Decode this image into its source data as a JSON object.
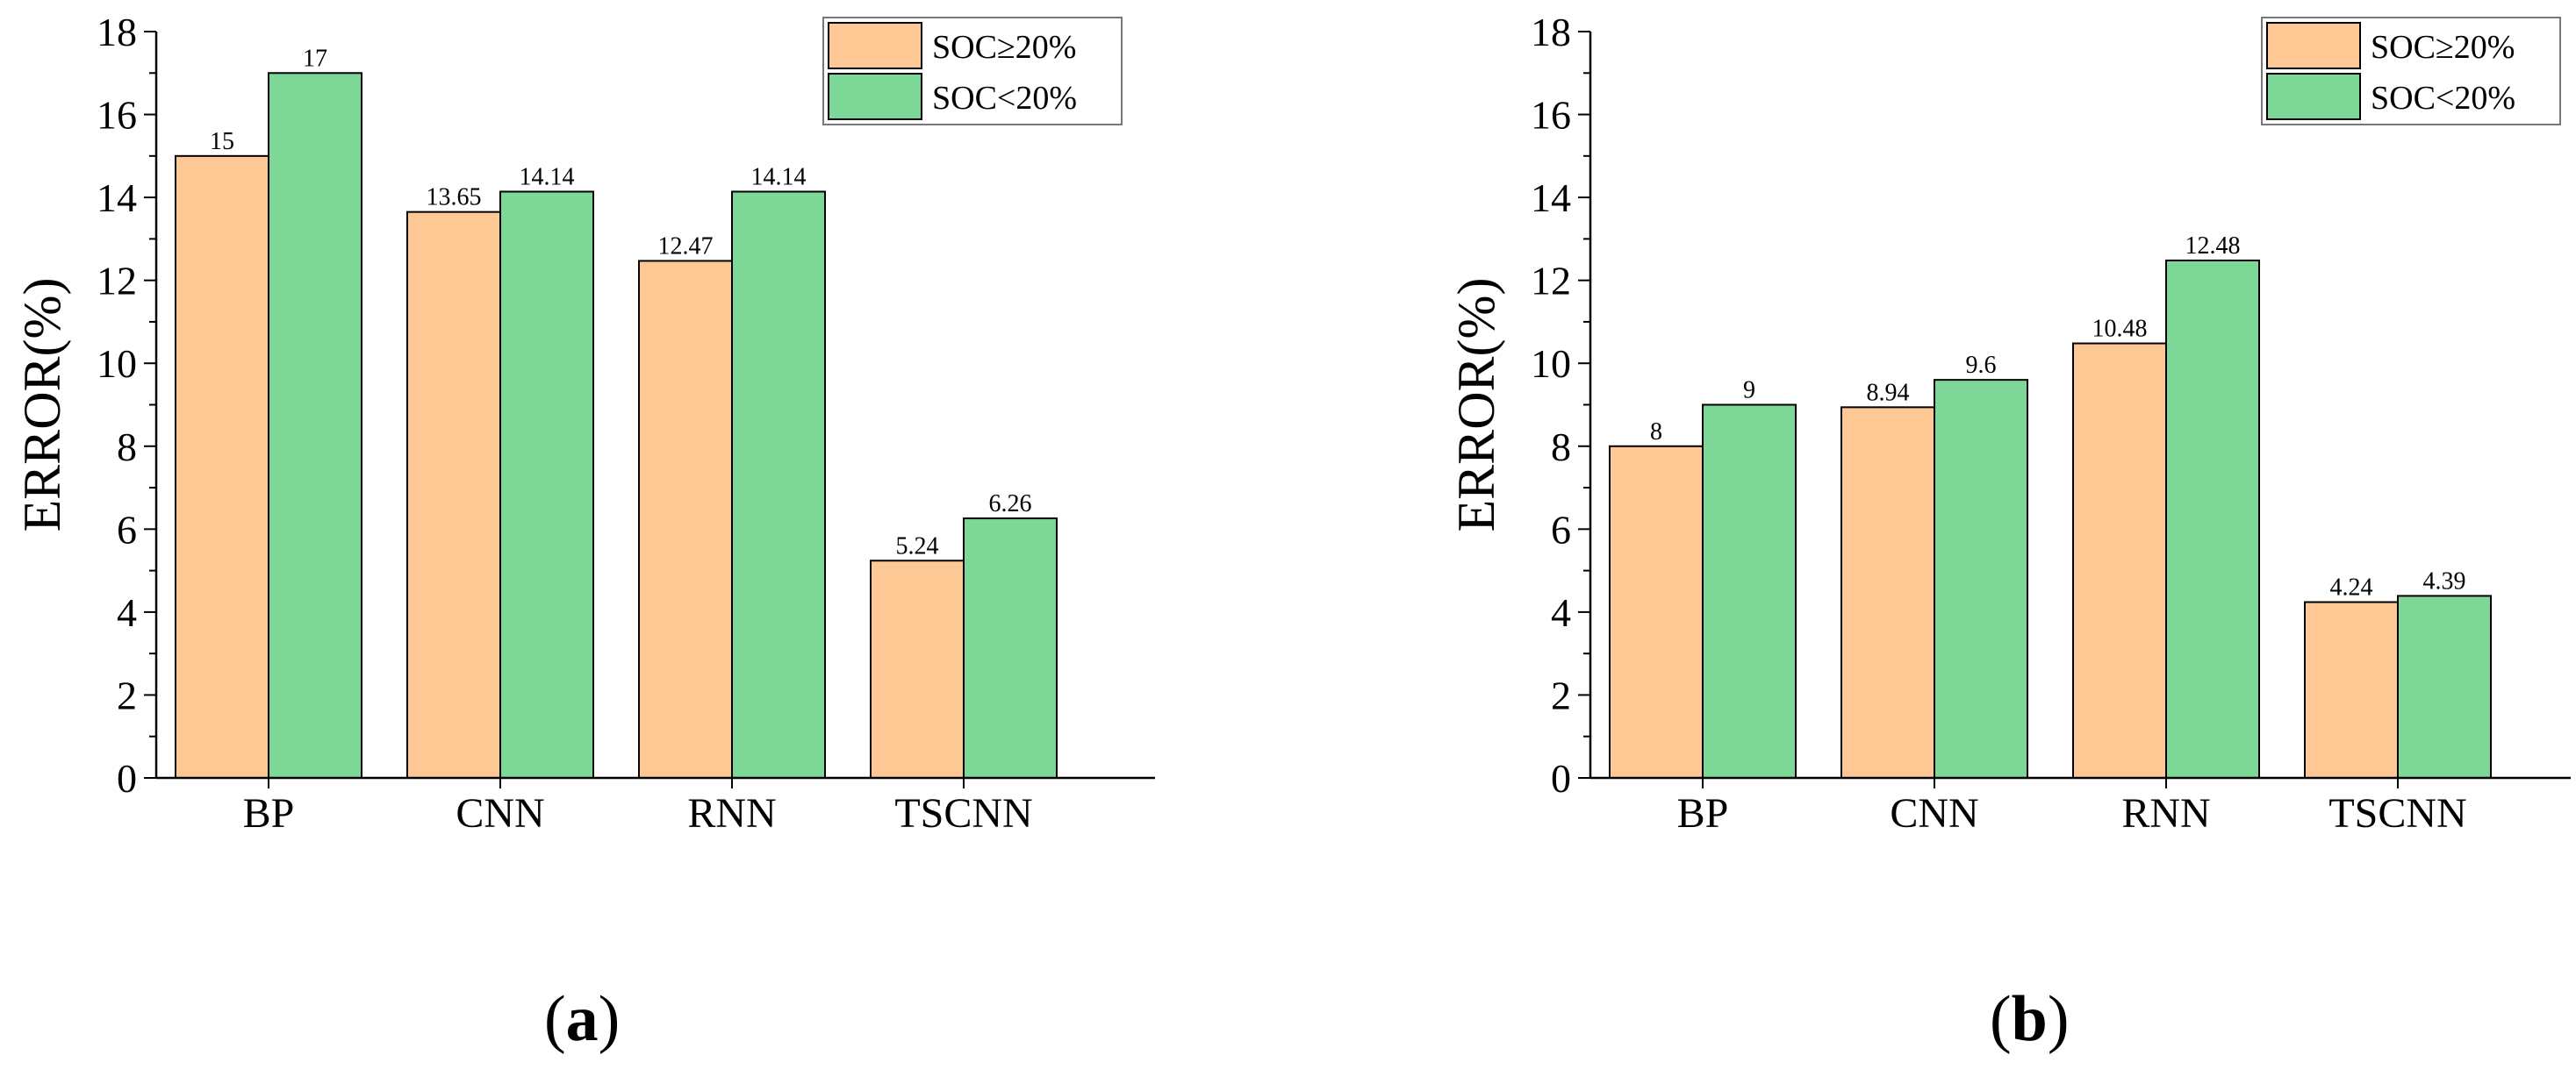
{
  "chart_data": [
    {
      "type": "bar",
      "panel_label": "a",
      "title": "",
      "xlabel": "",
      "ylabel": "ERROR(%)",
      "ylim": [
        0,
        18
      ],
      "yticks": [
        0,
        2,
        4,
        6,
        8,
        10,
        12,
        14,
        16,
        18
      ],
      "categories": [
        "BP",
        "CNN",
        "RNN",
        "TSCNN"
      ],
      "series": [
        {
          "name": "SOC≥20%",
          "color": "#FDC894",
          "values": [
            15,
            13.65,
            12.47,
            5.24
          ],
          "labels": [
            "15",
            "13.65",
            "12.47",
            "5.24"
          ]
        },
        {
          "name": "SOC<20%",
          "color": "#7DD897",
          "values": [
            17,
            14.14,
            14.14,
            6.26
          ],
          "labels": [
            "17",
            "14.14",
            "14.14",
            "6.26"
          ]
        }
      ],
      "legend": "top-right"
    },
    {
      "type": "bar",
      "panel_label": "b",
      "title": "",
      "xlabel": "",
      "ylabel": "ERROR(%)",
      "ylim": [
        0,
        18
      ],
      "yticks": [
        0,
        2,
        4,
        6,
        8,
        10,
        12,
        14,
        16,
        18
      ],
      "categories": [
        "BP",
        "CNN",
        "RNN",
        "TSCNN"
      ],
      "series": [
        {
          "name": "SOC≥20%",
          "color": "#FDC894",
          "values": [
            8,
            8.94,
            10.48,
            4.24
          ],
          "labels": [
            "8",
            "8.94",
            "10.48",
            "4.24"
          ]
        },
        {
          "name": "SOC<20%",
          "color": "#7DD897",
          "values": [
            9,
            9.6,
            12.48,
            4.39
          ],
          "labels": [
            "9",
            "9.6",
            "12.48",
            "4.39"
          ]
        }
      ],
      "legend": "top-right"
    }
  ]
}
